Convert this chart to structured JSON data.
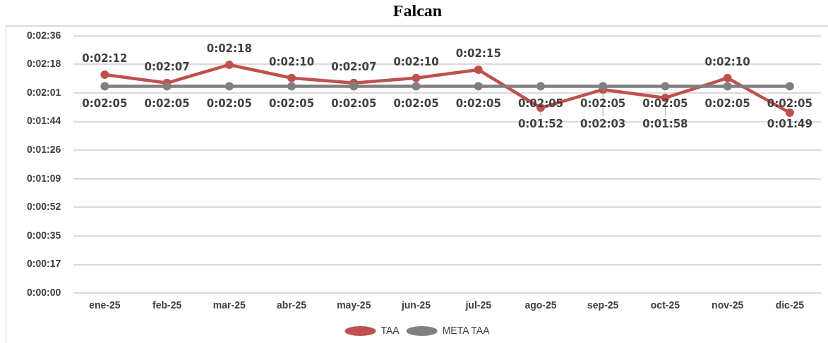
{
  "chart_data": {
    "type": "line",
    "title": "Falcan",
    "categories": [
      "ene-25",
      "feb-25",
      "mar-25",
      "abr-25",
      "may-25",
      "jun-25",
      "jul-25",
      "ago-25",
      "sep-25",
      "oct-25",
      "nov-25",
      "dic-25"
    ],
    "series": [
      {
        "name": "TAA",
        "color": "#c0504d",
        "values": [
          132,
          127,
          138,
          130,
          127,
          130,
          135,
          112,
          123,
          118,
          130,
          109
        ],
        "value_labels": [
          "0:02:12",
          "0:02:07",
          "0:02:18",
          "0:02:10",
          "0:02:07",
          "0:02:10",
          "0:02:15",
          "0:01:52",
          "0:02:03",
          "0:01:58",
          "0:02:10",
          "0:01:49"
        ]
      },
      {
        "name": "META TAA",
        "color": "#7f7f7f",
        "values": [
          125,
          125,
          125,
          125,
          125,
          125,
          125,
          125,
          125,
          125,
          125,
          125
        ],
        "value_labels": [
          "0:02:05",
          "0:02:05",
          "0:02:05",
          "0:02:05",
          "0:02:05",
          "0:02:05",
          "0:02:05",
          "0:02:05",
          "0:02:05",
          "0:02:05",
          "0:02:05",
          "0:02:05"
        ]
      }
    ],
    "ylim": [
      0,
      155.52
    ],
    "yticks": [
      {
        "value": 0,
        "label": "0:00:00"
      },
      {
        "value": 17.28,
        "label": "0:00:17"
      },
      {
        "value": 34.56,
        "label": "0:00:35"
      },
      {
        "value": 51.84,
        "label": "0:00:52"
      },
      {
        "value": 69.12,
        "label": "0:01:09"
      },
      {
        "value": 86.4,
        "label": "0:01:26"
      },
      {
        "value": 103.68,
        "label": "0:01:44"
      },
      {
        "value": 120.96,
        "label": "0:02:01"
      },
      {
        "value": 138.24,
        "label": "0:02:18"
      },
      {
        "value": 155.52,
        "label": "0:02:36"
      }
    ],
    "grid": "y",
    "legend": "bottom",
    "marker": "circle",
    "line_style": "solid"
  }
}
